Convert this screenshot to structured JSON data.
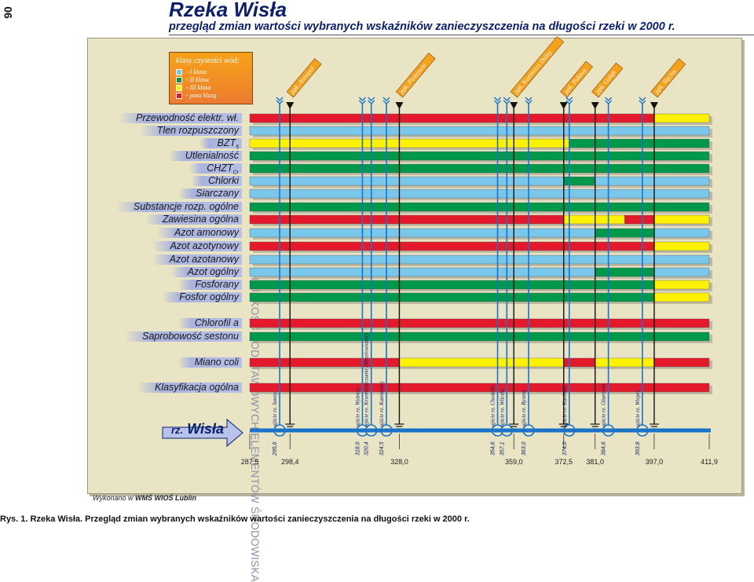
{
  "page_number": "90",
  "header": {
    "title": "Rzeka Wisła",
    "subtitle": "przegląd zmian wartości wybranych wskaźników zanieczyszczenia na długości rzeki w 2000 r."
  },
  "side_text": "III. JAKOŚĆ PODSTAWOWYCH ELEMENTÓW ŚRODOWISKA",
  "legend": {
    "title": "klasy czystości wód:",
    "items": [
      {
        "label": "- I klasa",
        "color": "#79c7ea"
      },
      {
        "label": "- II klasa",
        "color": "#00994c"
      },
      {
        "label": "- III klasa",
        "color": "#fff200"
      },
      {
        "label": "- poza klasą",
        "color": "#e5192c"
      }
    ]
  },
  "credit": {
    "prefix": "Wykonano w ",
    "org": "WMŚ WIOŚ Lublin"
  },
  "caption": "Rys. 1. Rzeka Wisła. Przegląd zmian wybranych wskaźników wartości zanieczyszczenia na długości rzeki w 2000 r.",
  "river": {
    "name_prefix": "rz.",
    "name": "Wisła"
  },
  "chart_data": {
    "type": "table",
    "x_unit": "km",
    "xlim": [
      287.5,
      411.9
    ],
    "colors": {
      "I": "#79c7ea",
      "II": "#00994c",
      "III": "#fff200",
      "poza": "#e5192c"
    },
    "km_ticks": [
      287.5,
      298.4,
      328.0,
      359.0,
      372.5,
      381.0,
      397.0,
      411.9
    ],
    "km_tick_labels": [
      "287,5",
      "298,4",
      "328,0",
      "359,0",
      "372,5",
      "381,0",
      "397,0",
      "411,9"
    ],
    "stations": [
      {
        "name": "ppk. Annopol",
        "km": 298.4
      },
      {
        "name": "ppk. Piotrawin",
        "km": 328.0
      },
      {
        "name": "ppk. Kazimierz Dolny",
        "km": 359.0
      },
      {
        "name": "ppk. Puławy",
        "km": 372.5
      },
      {
        "name": "ppk. Gołąb",
        "km": 381.0
      },
      {
        "name": "ppk. Sięciny",
        "km": 397.0
      }
    ],
    "tributaries": [
      {
        "label": "ujście rz. Sanny",
        "km": 295.6,
        "km_label": "295,6"
      },
      {
        "label": "ujście rz. Wyżnicy",
        "km": 318.0,
        "km_label": "318,0"
      },
      {
        "label": "ujście rz. Krzemieniczanki (Wrzelowianki)",
        "km": 320.4,
        "km_label": "320,4"
      },
      {
        "label": "ujście rz. Kamiennej",
        "km": 324.5,
        "km_label": "324,5"
      },
      {
        "label": "ujście rz. Chodelki",
        "km": 354.6,
        "km_label": "354,6"
      },
      {
        "label": "ujście rz. Wilczki",
        "km": 357.1,
        "km_label": "357,1"
      },
      {
        "label": "ujście rz. Bystrej",
        "km": 363.0,
        "km_label": "363,0"
      },
      {
        "label": "ujście rz. Kurówki",
        "km": 374.0,
        "km_label": "374,0"
      },
      {
        "label": "ujście rz. Ożarówki",
        "km": 384.6,
        "km_label": "384,6"
      },
      {
        "label": "ujście rz. Wieprz",
        "km": 393.8,
        "km_label": "393,8"
      }
    ],
    "parameters": [
      {
        "label": "Przewodność elektr. wł.",
        "segments": [
          [
            287.5,
            397.0,
            "poza"
          ],
          [
            397.0,
            411.9,
            "III"
          ]
        ]
      },
      {
        "label": "Tlen rozpuszczony",
        "segments": [
          [
            287.5,
            411.9,
            "I"
          ]
        ]
      },
      {
        "label": "BZT",
        "sub": "5",
        "segments": [
          [
            287.5,
            374.0,
            "III"
          ],
          [
            374.0,
            411.9,
            "II"
          ]
        ]
      },
      {
        "label": "Utlenialność",
        "segments": [
          [
            287.5,
            411.9,
            "II"
          ]
        ]
      },
      {
        "label": "CHZT",
        "sub": "Cr",
        "segments": [
          [
            287.5,
            411.9,
            "II"
          ]
        ]
      },
      {
        "label": "Chlorki",
        "segments": [
          [
            287.5,
            372.5,
            "I"
          ],
          [
            372.5,
            381.0,
            "II"
          ],
          [
            381.0,
            411.9,
            "I"
          ]
        ]
      },
      {
        "label": "Siarczany",
        "segments": [
          [
            287.5,
            411.9,
            "I"
          ]
        ]
      },
      {
        "label": "Substancje rozp. ogólne",
        "segments": [
          [
            287.5,
            411.9,
            "II"
          ]
        ]
      },
      {
        "label": "Zawiesina ogólna",
        "segments": [
          [
            287.5,
            372.5,
            "poza"
          ],
          [
            372.5,
            389.0,
            "III"
          ],
          [
            389.0,
            397.0,
            "poza"
          ],
          [
            397.0,
            411.9,
            "III"
          ]
        ]
      },
      {
        "label": "Azot amonowy",
        "segments": [
          [
            287.5,
            381.0,
            "I"
          ],
          [
            381.0,
            397.0,
            "II"
          ],
          [
            397.0,
            411.9,
            "I"
          ]
        ]
      },
      {
        "label": "Azot azotynowy",
        "segments": [
          [
            287.5,
            397.0,
            "poza"
          ],
          [
            397.0,
            411.9,
            "III"
          ]
        ]
      },
      {
        "label": "Azot azotanowy",
        "segments": [
          [
            287.5,
            411.9,
            "I"
          ]
        ]
      },
      {
        "label": "Azot ogólny",
        "segments": [
          [
            287.5,
            381.0,
            "I"
          ],
          [
            381.0,
            397.0,
            "II"
          ],
          [
            397.0,
            411.9,
            "I"
          ]
        ]
      },
      {
        "label": "Fosforany",
        "segments": [
          [
            287.5,
            397.0,
            "II"
          ],
          [
            397.0,
            411.9,
            "III"
          ]
        ]
      },
      {
        "label": "Fosfor ogólny",
        "segments": [
          [
            287.5,
            397.0,
            "II"
          ],
          [
            397.0,
            411.9,
            "III"
          ]
        ]
      },
      {
        "label": "Chlorofil a",
        "segments": [
          [
            287.5,
            411.9,
            "poza"
          ]
        ]
      },
      {
        "label": "Saprobowość sestonu",
        "segments": [
          [
            287.5,
            411.9,
            "II"
          ]
        ]
      },
      {
        "label": "Miano coli",
        "segments": [
          [
            287.5,
            328.0,
            "poza"
          ],
          [
            328.0,
            372.5,
            "III"
          ],
          [
            372.5,
            381.0,
            "poza"
          ],
          [
            381.0,
            397.0,
            "III"
          ],
          [
            397.0,
            411.9,
            "poza"
          ]
        ]
      },
      {
        "label": "Klasyfikacja ogólna",
        "segments": [
          [
            287.5,
            411.9,
            "poza"
          ]
        ]
      }
    ]
  }
}
